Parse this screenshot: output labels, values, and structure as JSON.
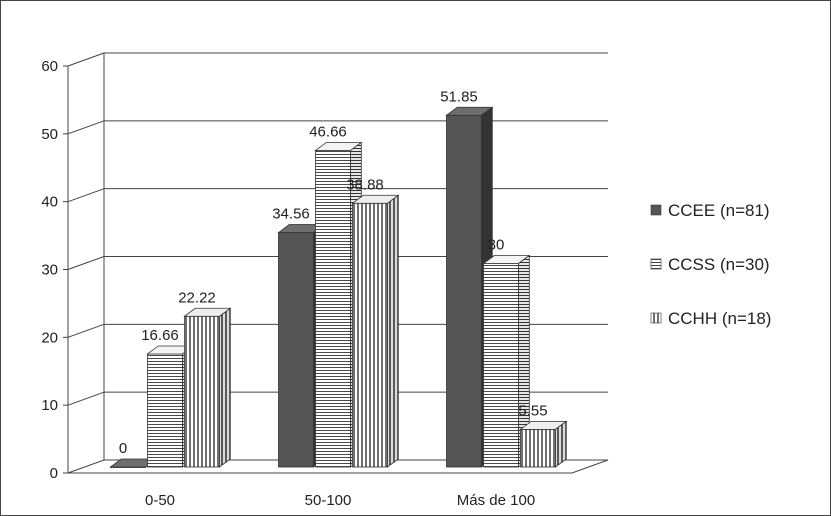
{
  "chart_data": {
    "type": "bar",
    "categories": [
      "0-50",
      "50-100",
      "Más de 100"
    ],
    "series": [
      {
        "name": "CCEE (n=81)",
        "values": [
          0,
          34.56,
          51.85
        ],
        "labels": [
          "0",
          "34.56",
          "51.85"
        ],
        "pattern": "solid"
      },
      {
        "name": "CCSS (n=30)",
        "values": [
          16.66,
          46.66,
          30
        ],
        "labels": [
          "16.66",
          "46.66",
          "30"
        ],
        "pattern": "horizontal-lines"
      },
      {
        "name": "CCHH (n=18)",
        "values": [
          22.22,
          38.88,
          5.55
        ],
        "labels": [
          "22.22",
          "38.88",
          "5.55"
        ],
        "pattern": "vertical-lines"
      }
    ],
    "yticks": [
      "0",
      "10",
      "20",
      "30",
      "40",
      "50",
      "60"
    ],
    "ylim": [
      0,
      60
    ],
    "grid": true,
    "legend_position": "right",
    "colors": {
      "solid": "#555555",
      "solid_top": "#6e6e6e",
      "solid_side": "#333333",
      "stroke": "#333333",
      "grid": "#444444"
    }
  }
}
